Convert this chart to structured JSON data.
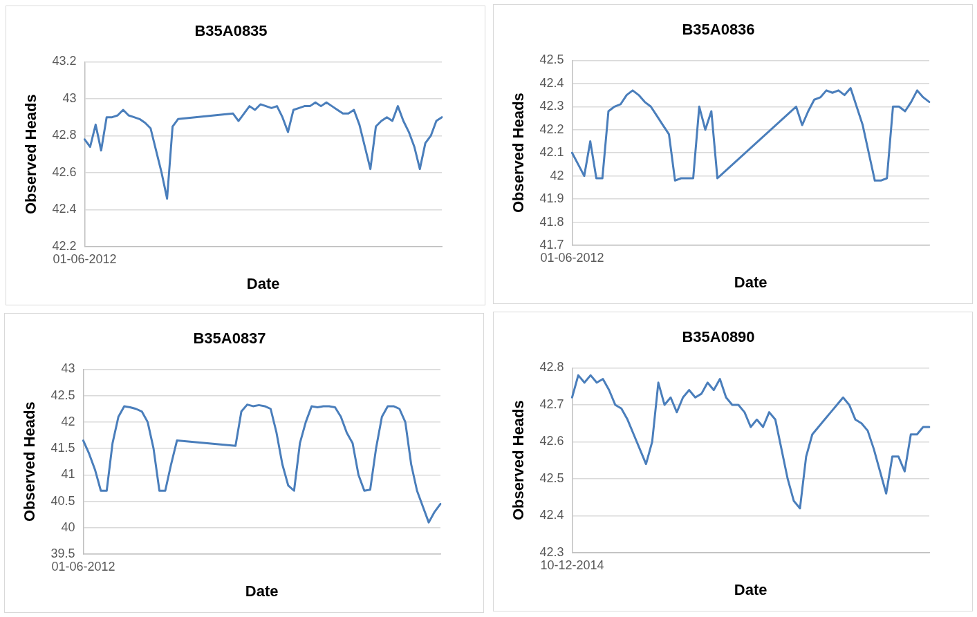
{
  "chart_data": [
    {
      "type": "line",
      "title": "B35A0835",
      "xlabel": "Date",
      "ylabel": "Observed Heads",
      "ylim": [
        42.2,
        43.2
      ],
      "yticks": [
        42.2,
        42.4,
        42.6,
        42.8,
        43,
        43.2
      ],
      "grid": "y",
      "marker": "none",
      "categories": [
        "01-06-2012",
        null,
        null,
        null,
        null,
        null,
        null,
        null,
        null,
        null,
        null,
        null,
        null,
        null,
        null,
        null,
        null,
        null,
        null,
        null,
        null,
        null,
        null,
        null,
        null,
        null,
        null,
        null,
        null,
        null,
        null,
        null,
        null,
        null,
        null,
        null,
        null,
        null,
        null,
        null,
        null,
        null,
        null,
        null,
        null,
        null,
        null,
        null,
        null,
        null,
        null,
        null,
        null,
        null,
        null,
        null,
        null,
        null,
        null,
        null,
        null,
        null,
        null,
        null,
        null,
        null
      ],
      "series": [
        {
          "color": "#4a7ebb",
          "values": [
            42.78,
            42.74,
            42.86,
            42.72,
            42.9,
            42.9,
            42.91,
            42.94,
            42.91,
            42.9,
            42.89,
            42.87,
            42.84,
            42.72,
            42.6,
            42.46,
            42.85,
            42.89,
            null,
            null,
            null,
            null,
            null,
            null,
            null,
            null,
            null,
            42.92,
            42.88,
            42.92,
            42.96,
            42.94,
            42.97,
            42.96,
            42.95,
            42.96,
            42.9,
            42.82,
            42.94,
            42.95,
            42.96,
            42.96,
            42.98,
            42.96,
            42.98,
            42.96,
            42.94,
            42.92,
            42.92,
            42.94,
            42.86,
            42.74,
            42.62,
            42.85,
            42.88,
            42.9,
            42.88,
            42.96,
            42.88,
            42.82,
            42.74,
            42.62,
            42.76,
            42.8,
            42.88,
            42.9
          ]
        }
      ]
    },
    {
      "type": "line",
      "title": "B35A0836",
      "xlabel": "Date",
      "ylabel": "Observed Heads",
      "ylim": [
        41.7,
        42.5
      ],
      "yticks": [
        41.7,
        41.8,
        41.9,
        42,
        42.1,
        42.2,
        42.3,
        42.4,
        42.5
      ],
      "grid": "y",
      "marker": "none",
      "categories": [
        "01-06-2012",
        null,
        null,
        null,
        null,
        null,
        null,
        null,
        null,
        null,
        null,
        null,
        null,
        null,
        null,
        null,
        null,
        null,
        null,
        null,
        null,
        null,
        null,
        null,
        null,
        null,
        null,
        null,
        null,
        null,
        null,
        null,
        null,
        null,
        null,
        null,
        null,
        null,
        null,
        null,
        null,
        null,
        null,
        null,
        null,
        null,
        null,
        null,
        null,
        null,
        null,
        null,
        null,
        null,
        null,
        null,
        null,
        null,
        null,
        null
      ],
      "series": [
        {
          "color": "#4a7ebb",
          "values": [
            42.1,
            42.05,
            42,
            42.15,
            41.99,
            41.99,
            42.28,
            42.3,
            42.31,
            42.35,
            42.37,
            42.35,
            42.32,
            42.3,
            42.26,
            42.22,
            42.18,
            41.98,
            41.99,
            41.99,
            41.99,
            42.3,
            42.2,
            42.28,
            41.99,
            null,
            null,
            null,
            null,
            null,
            null,
            null,
            null,
            null,
            null,
            null,
            null,
            42.3,
            42.22,
            42.28,
            42.33,
            42.34,
            42.37,
            42.36,
            42.37,
            42.35,
            42.38,
            42.3,
            42.22,
            42.1,
            41.98,
            41.98,
            41.99,
            42.3,
            42.3,
            42.28,
            42.32,
            42.37,
            42.34,
            42.32
          ]
        }
      ]
    },
    {
      "type": "line",
      "title": "B35A0837",
      "xlabel": "Date",
      "ylabel": "Observed Heads",
      "ylim": [
        39.5,
        43
      ],
      "yticks": [
        39.5,
        40,
        40.5,
        41,
        41.5,
        42,
        42.5,
        43
      ],
      "grid": "y",
      "marker": "none",
      "categories": [
        "01-06-2012",
        null,
        null,
        null,
        null,
        null,
        null,
        null,
        null,
        null,
        null,
        null,
        null,
        null,
        null,
        null,
        null,
        null,
        null,
        null,
        null,
        null,
        null,
        null,
        null,
        null,
        null,
        null,
        null,
        null,
        null,
        null,
        null,
        null,
        null,
        null,
        null,
        null,
        null,
        null,
        null,
        null,
        null,
        null,
        null,
        null,
        null,
        null,
        null,
        null,
        null,
        null,
        null,
        null,
        null,
        null,
        null,
        null,
        null,
        null,
        null,
        null
      ],
      "series": [
        {
          "color": "#4a7ebb",
          "values": [
            41.65,
            41.4,
            41.1,
            40.7,
            40.7,
            41.6,
            42.1,
            42.3,
            42.28,
            42.25,
            42.2,
            42,
            41.5,
            40.7,
            40.7,
            41.2,
            41.65,
            null,
            null,
            null,
            null,
            null,
            null,
            null,
            null,
            null,
            41.55,
            42.2,
            42.33,
            42.3,
            42.32,
            42.3,
            42.25,
            41.8,
            41.2,
            40.8,
            40.7,
            41.6,
            42,
            42.3,
            42.28,
            42.3,
            42.3,
            42.28,
            42.1,
            41.8,
            41.6,
            41,
            40.7,
            40.72,
            41.5,
            42.1,
            42.3,
            42.3,
            42.25,
            42,
            41.2,
            40.7,
            40.4,
            40.1,
            40.3,
            40.45
          ]
        }
      ]
    },
    {
      "type": "line",
      "title": "B35A0890",
      "xlabel": "Date",
      "ylabel": "Observed Heads",
      "ylim": [
        42.3,
        42.8
      ],
      "yticks": [
        42.3,
        42.4,
        42.5,
        42.6,
        42.7,
        42.8
      ],
      "grid": "y",
      "marker": "none",
      "categories": [
        "10-12-2014",
        null,
        null,
        null,
        null,
        null,
        null,
        null,
        null,
        null,
        null,
        null,
        null,
        null,
        null,
        null,
        null,
        null,
        null,
        null,
        null,
        null,
        null,
        null,
        null,
        null,
        null,
        null,
        null,
        null,
        null,
        null,
        null,
        null,
        null,
        null,
        null,
        null,
        null,
        null,
        null,
        null,
        null,
        null,
        null,
        null,
        null,
        null,
        null,
        null,
        null,
        null,
        null,
        null,
        null,
        null,
        null,
        null,
        null
      ],
      "series": [
        {
          "color": "#4a7ebb",
          "values": [
            42.72,
            42.78,
            42.76,
            42.78,
            42.76,
            42.77,
            42.74,
            42.7,
            42.69,
            42.66,
            42.62,
            42.58,
            42.54,
            42.6,
            42.76,
            42.7,
            42.72,
            42.68,
            42.72,
            42.74,
            42.72,
            42.73,
            42.76,
            42.74,
            42.77,
            42.72,
            42.7,
            42.7,
            42.68,
            42.64,
            42.66,
            42.64,
            42.68,
            42.66,
            42.58,
            42.5,
            42.44,
            42.42,
            42.56,
            42.62,
            42.64,
            42.66,
            42.68,
            42.7,
            42.72,
            42.7,
            42.66,
            42.65,
            42.63,
            42.58,
            42.52,
            42.46,
            42.56,
            42.56,
            42.52,
            42.62,
            42.62,
            42.64,
            42.64
          ]
        }
      ]
    }
  ]
}
